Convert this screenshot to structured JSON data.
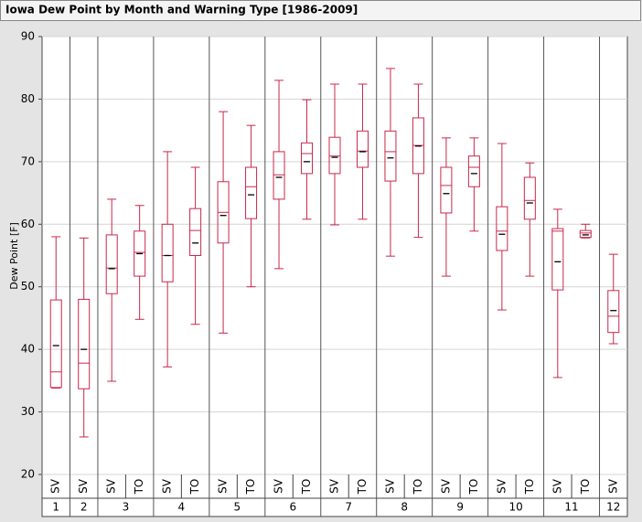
{
  "chart_data": {
    "type": "box",
    "title": "Iowa Dew Point by Month and Warning Type [1986-2009]",
    "y_label": "Dew Point [F]",
    "ylim": [
      20,
      90
    ],
    "yticks": [
      20,
      30,
      40,
      50,
      60,
      70,
      80,
      90
    ],
    "grid": true,
    "color": "#c8284a",
    "mean_color": "#000000",
    "months": [
      {
        "label": "1",
        "boxes": [
          {
            "label": "SV",
            "low": 33.8,
            "q1": 33.9,
            "median": 36.4,
            "q3": 47.9,
            "high": 58,
            "mean": 40.6
          }
        ]
      },
      {
        "label": "2",
        "boxes": [
          {
            "label": "SV",
            "low": 26,
            "q1": 33.7,
            "median": 37.8,
            "q3": 48,
            "high": 57.8,
            "mean": 40
          }
        ]
      },
      {
        "label": "3",
        "boxes": [
          {
            "label": "SV",
            "low": 34.9,
            "q1": 48.9,
            "median": 53,
            "q3": 58.3,
            "high": 64,
            "mean": 52.9
          },
          {
            "label": "TO",
            "low": 44.8,
            "q1": 51.7,
            "median": 55.5,
            "q3": 58.9,
            "high": 63,
            "mean": 55.3
          }
        ]
      },
      {
        "label": "4",
        "boxes": [
          {
            "label": "SV",
            "low": 37.2,
            "q1": 50.8,
            "median": 55,
            "q3": 60,
            "high": 71.6,
            "mean": 55
          },
          {
            "label": "TO",
            "low": 44,
            "q1": 55,
            "median": 59,
            "q3": 62.5,
            "high": 69.1,
            "mean": 57
          }
        ]
      },
      {
        "label": "5",
        "boxes": [
          {
            "label": "SV",
            "low": 42.6,
            "q1": 57,
            "median": 61.9,
            "q3": 66.8,
            "high": 78,
            "mean": 61.4
          },
          {
            "label": "TO",
            "low": 50,
            "q1": 60.9,
            "median": 66,
            "q3": 69.1,
            "high": 75.8,
            "mean": 64.7
          }
        ]
      },
      {
        "label": "6",
        "boxes": [
          {
            "label": "SV",
            "low": 52.9,
            "q1": 64,
            "median": 67.9,
            "q3": 71.6,
            "high": 83,
            "mean": 67.5
          },
          {
            "label": "TO",
            "low": 60.8,
            "q1": 68.1,
            "median": 71.3,
            "q3": 73,
            "high": 79.9,
            "mean": 70
          }
        ]
      },
      {
        "label": "7",
        "boxes": [
          {
            "label": "SV",
            "low": 59.9,
            "q1": 68.1,
            "median": 70.9,
            "q3": 73.9,
            "high": 82.4,
            "mean": 70.7
          },
          {
            "label": "TO",
            "low": 60.8,
            "q1": 69.1,
            "median": 71.7,
            "q3": 74.9,
            "high": 82.4,
            "mean": 71.6
          }
        ]
      },
      {
        "label": "8",
        "boxes": [
          {
            "label": "SV",
            "low": 54.9,
            "q1": 66.9,
            "median": 71.6,
            "q3": 74.9,
            "high": 84.9,
            "mean": 70.6
          },
          {
            "label": "TO",
            "low": 57.9,
            "q1": 68.1,
            "median": 72.6,
            "q3": 77,
            "high": 82.4,
            "mean": 72.5
          }
        ]
      },
      {
        "label": "9",
        "boxes": [
          {
            "label": "SV",
            "low": 51.7,
            "q1": 61.8,
            "median": 66.2,
            "q3": 69.1,
            "high": 73.8,
            "mean": 64.9
          },
          {
            "label": "TO",
            "low": 58.9,
            "q1": 66,
            "median": 69.1,
            "q3": 70.9,
            "high": 73.8,
            "mean": 68.1
          }
        ]
      },
      {
        "label": "10",
        "boxes": [
          {
            "label": "SV",
            "low": 46.3,
            "q1": 55.8,
            "median": 58.9,
            "q3": 62.8,
            "high": 72.9,
            "mean": 58.4
          },
          {
            "label": "TO",
            "low": 51.7,
            "q1": 60.8,
            "median": 63.8,
            "q3": 67.5,
            "high": 69.8,
            "mean": 63.4
          }
        ]
      },
      {
        "label": "11",
        "boxes": [
          {
            "label": "SV",
            "low": 35.5,
            "q1": 49.5,
            "median": 58.9,
            "q3": 59.3,
            "high": 62.4,
            "mean": 54
          },
          {
            "label": "TO",
            "low": 57.8,
            "q1": 57.9,
            "median": 58.6,
            "q3": 59,
            "high": 60,
            "mean": 58.3
          }
        ]
      },
      {
        "label": "12",
        "boxes": [
          {
            "label": "SV",
            "low": 40.9,
            "q1": 42.7,
            "median": 45.3,
            "q3": 49.4,
            "high": 55.2,
            "mean": 46.2
          }
        ]
      }
    ]
  }
}
